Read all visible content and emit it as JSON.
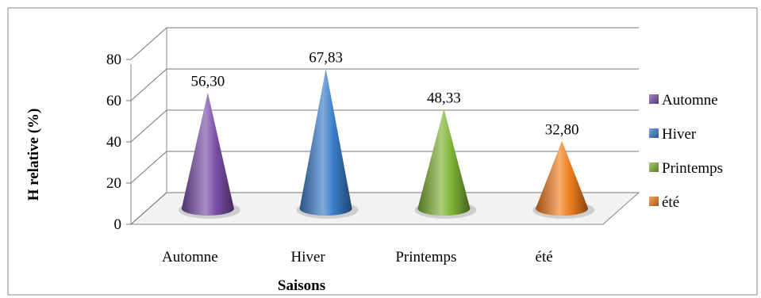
{
  "chart_data": {
    "type": "bar",
    "style": "3d-cone",
    "categories": [
      "Automne",
      "Hiver",
      "Printemps",
      "été"
    ],
    "series": [
      {
        "name": "Automne",
        "category": "Automne",
        "value": 56.3,
        "label": "56,30",
        "color": "#7b4fa8"
      },
      {
        "name": "Hiver",
        "category": "Hiver",
        "value": 67.83,
        "label": "67,83",
        "color": "#3a7dc9"
      },
      {
        "name": "Printemps",
        "category": "Printemps",
        "value": 48.33,
        "label": "48,33",
        "color": "#7eb335"
      },
      {
        "name": "été",
        "category": "été",
        "value": 32.8,
        "label": "32,80",
        "color": "#f07e1f"
      }
    ],
    "yticks": [
      "0",
      "20",
      "40",
      "60",
      "80"
    ],
    "ylim": [
      0,
      80
    ],
    "xlabel": "Saisons",
    "ylabel": "H relative (%)",
    "grid": true,
    "legend_position": "right"
  }
}
